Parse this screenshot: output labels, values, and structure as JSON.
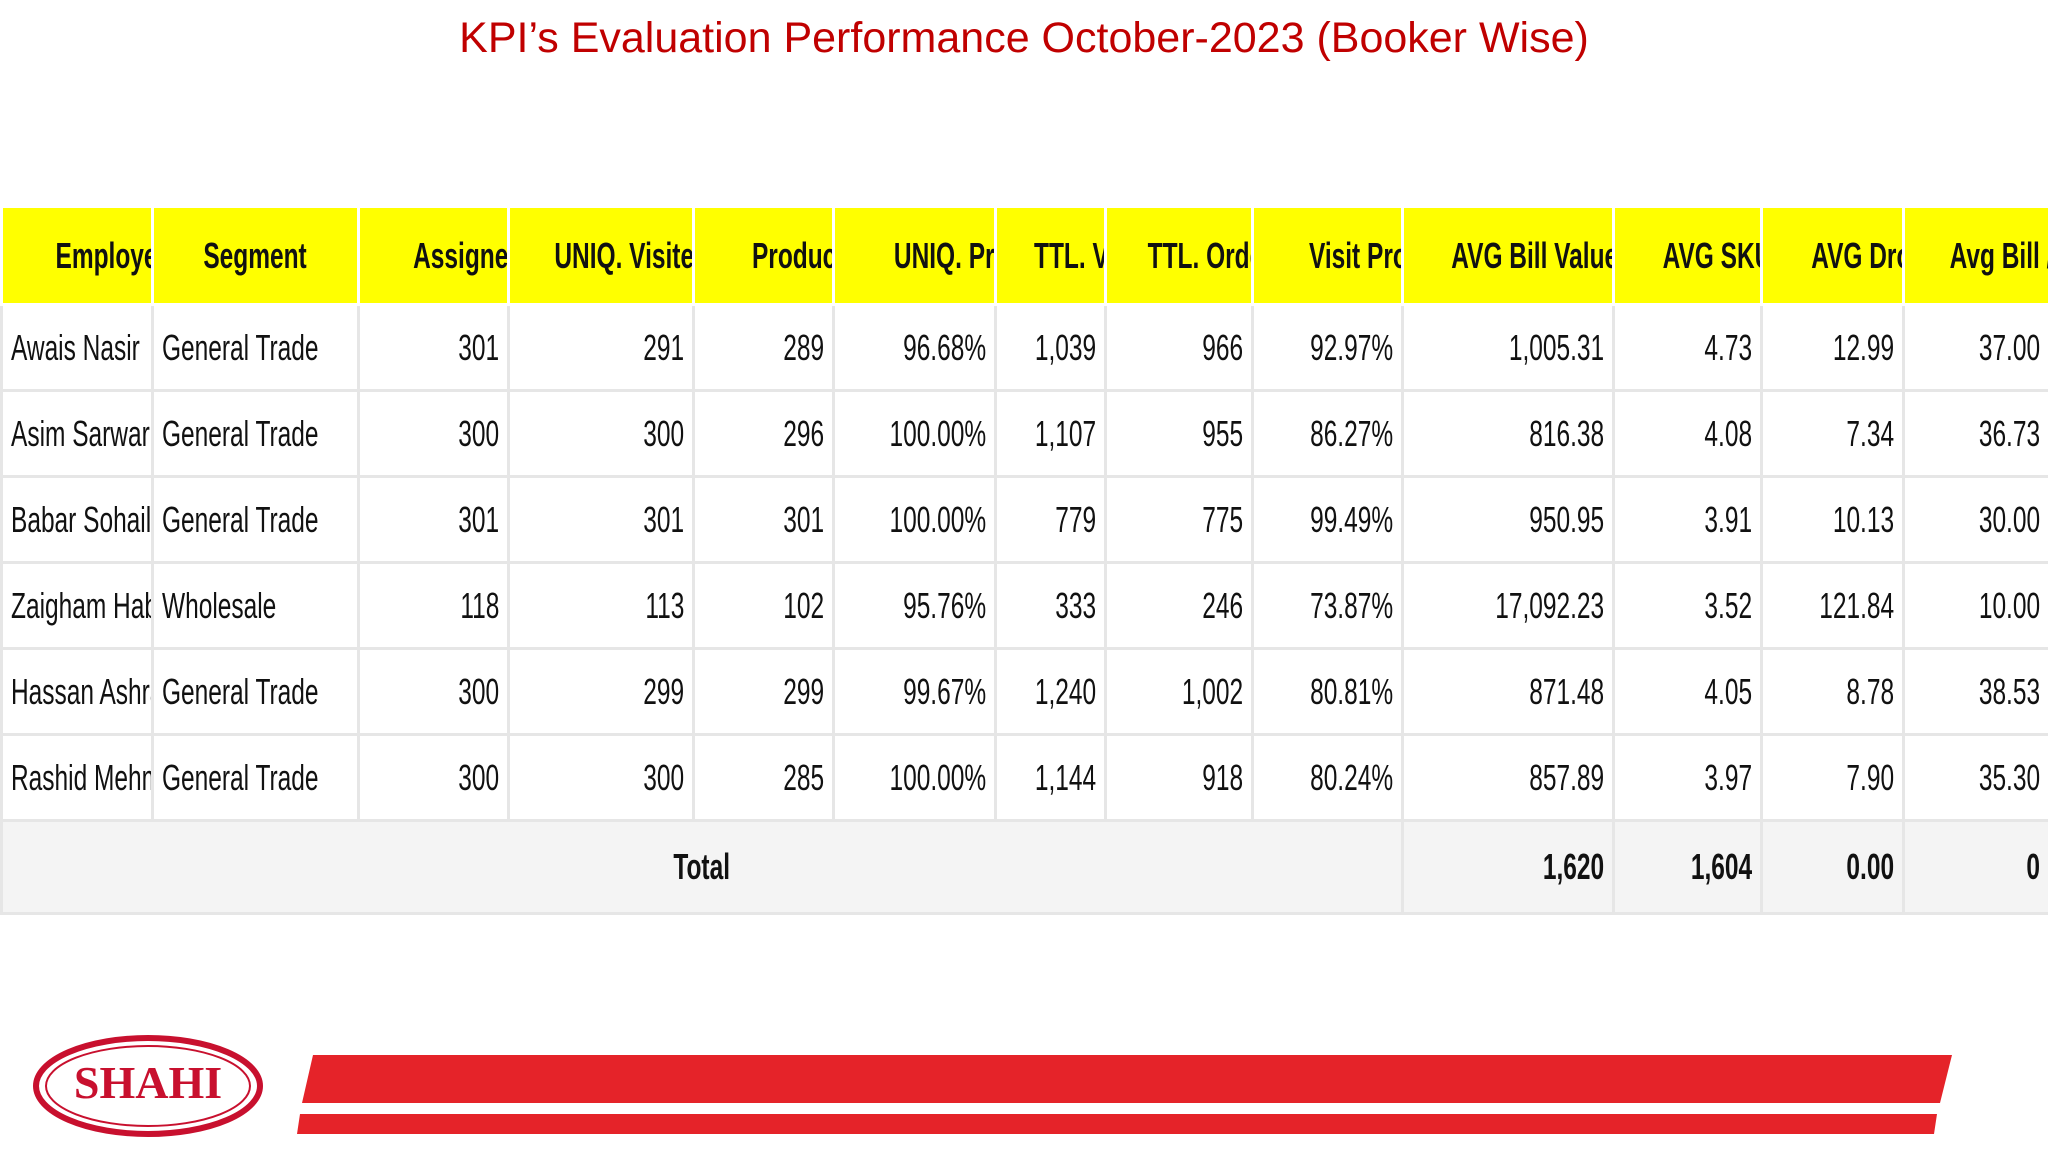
{
  "title": "KPI’s Evaluation Performance October-2023 (Booker Wise)",
  "table": {
    "headers": [
      "Employee Name",
      "Segment",
      "Assigned Shops",
      "UNIQ. Visited",
      "Productive Shops",
      "UNIQ. Productivity",
      "TTL. Visits",
      "TTL. Orders",
      "Visit Productivity",
      "AVG Bill Value",
      "AVG SKUs/Bill",
      "AVG Drop Size",
      "Avg Bill / Day"
    ],
    "rows": [
      [
        "Awais Nasir",
        "General Trade",
        "301",
        "291",
        "289",
        "96.68%",
        "1,039",
        "966",
        "92.97%",
        "1,005.31",
        "4.73",
        "12.99",
        "37.00"
      ],
      [
        "Asim Sarwar",
        "General Trade",
        "300",
        "300",
        "296",
        "100.00%",
        "1,107",
        "955",
        "86.27%",
        "816.38",
        "4.08",
        "7.34",
        "36.73"
      ],
      [
        "Babar Sohail",
        "General Trade",
        "301",
        "301",
        "301",
        "100.00%",
        "779",
        "775",
        "99.49%",
        "950.95",
        "3.91",
        "10.13",
        "30.00"
      ],
      [
        "Zaigham Habib",
        "Wholesale",
        "118",
        "113",
        "102",
        "95.76%",
        "333",
        "246",
        "73.87%",
        "17,092.23",
        "3.52",
        "121.84",
        "10.00"
      ],
      [
        "Hassan Ashraf",
        "General Trade",
        "300",
        "299",
        "299",
        "99.67%",
        "1,240",
        "1,002",
        "80.81%",
        "871.48",
        "4.05",
        "8.78",
        "38.53"
      ],
      [
        "Rashid Mehmood",
        "General Trade",
        "300",
        "300",
        "285",
        "100.00%",
        "1,144",
        "918",
        "80.24%",
        "857.89",
        "3.97",
        "7.90",
        "35.30"
      ]
    ],
    "total": {
      "label": "Total",
      "values": [
        "1,620",
        "1,604",
        "0.00",
        "0"
      ]
    }
  },
  "logo": "SHAHI"
}
